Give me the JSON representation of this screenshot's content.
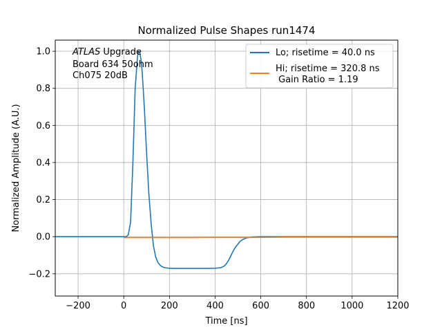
{
  "chart_data": {
    "type": "line",
    "title": "Normalized Pulse Shapes run1474",
    "xlabel": "Time [ns]",
    "ylabel": "Normalized Amplitude (A.U.)",
    "xlim": [
      -300,
      1200
    ],
    "ylim": [
      -0.32,
      1.06
    ],
    "xticks": [
      -200,
      0,
      200,
      400,
      600,
      800,
      1000,
      1200
    ],
    "xtick_labels": [
      "−200",
      "0",
      "200",
      "400",
      "600",
      "800",
      "1000",
      "1200"
    ],
    "yticks": [
      -0.2,
      0.0,
      0.2,
      0.4,
      0.6,
      0.8,
      1.0
    ],
    "ytick_labels": [
      "−0.2",
      "0.0",
      "0.2",
      "0.4",
      "0.6",
      "0.8",
      "1.0"
    ],
    "grid": true,
    "legend_position": "top-right",
    "annotation": {
      "line1_italic": "ATLAS",
      "line1_rest": " Upgrade",
      "line2": "Board 634 50ohm",
      "line3": "Ch075 20dB"
    },
    "series": [
      {
        "name": "Lo; risetime = 40.0 ns",
        "color": "#1f77b4",
        "x": [
          -300,
          -100,
          0,
          10,
          20,
          30,
          40,
          50,
          60,
          65,
          70,
          75,
          80,
          90,
          100,
          110,
          120,
          130,
          140,
          150,
          160,
          170,
          180,
          190,
          200,
          220,
          250,
          300,
          350,
          400,
          420,
          430,
          440,
          450,
          460,
          470,
          480,
          490,
          500,
          510,
          520,
          530,
          540,
          550,
          560,
          580,
          600,
          700,
          800,
          1000,
          1200
        ],
        "y": [
          0.0,
          0.0,
          0.0,
          0.0,
          0.01,
          0.08,
          0.4,
          0.8,
          0.97,
          1.0,
          0.99,
          0.96,
          0.9,
          0.7,
          0.45,
          0.23,
          0.07,
          -0.05,
          -0.11,
          -0.14,
          -0.155,
          -0.163,
          -0.167,
          -0.169,
          -0.17,
          -0.171,
          -0.171,
          -0.171,
          -0.171,
          -0.17,
          -0.168,
          -0.165,
          -0.158,
          -0.145,
          -0.125,
          -0.1,
          -0.075,
          -0.055,
          -0.04,
          -0.025,
          -0.016,
          -0.01,
          -0.006,
          -0.004,
          -0.002,
          -0.001,
          0.0,
          0.0,
          0.0,
          0.0,
          0.0
        ]
      },
      {
        "name": "Hi; risetime = 320.8 ns\n Gain Ratio = 1.19",
        "color": "#ff7f0e",
        "x": [
          0,
          100,
          200,
          300,
          400,
          500,
          600,
          700,
          800,
          900,
          1000,
          1100,
          1200
        ],
        "y": [
          -0.005,
          -0.005,
          -0.005,
          -0.005,
          -0.004,
          -0.004,
          -0.004,
          -0.003,
          -0.003,
          -0.003,
          -0.003,
          -0.003,
          -0.003
        ]
      }
    ]
  }
}
